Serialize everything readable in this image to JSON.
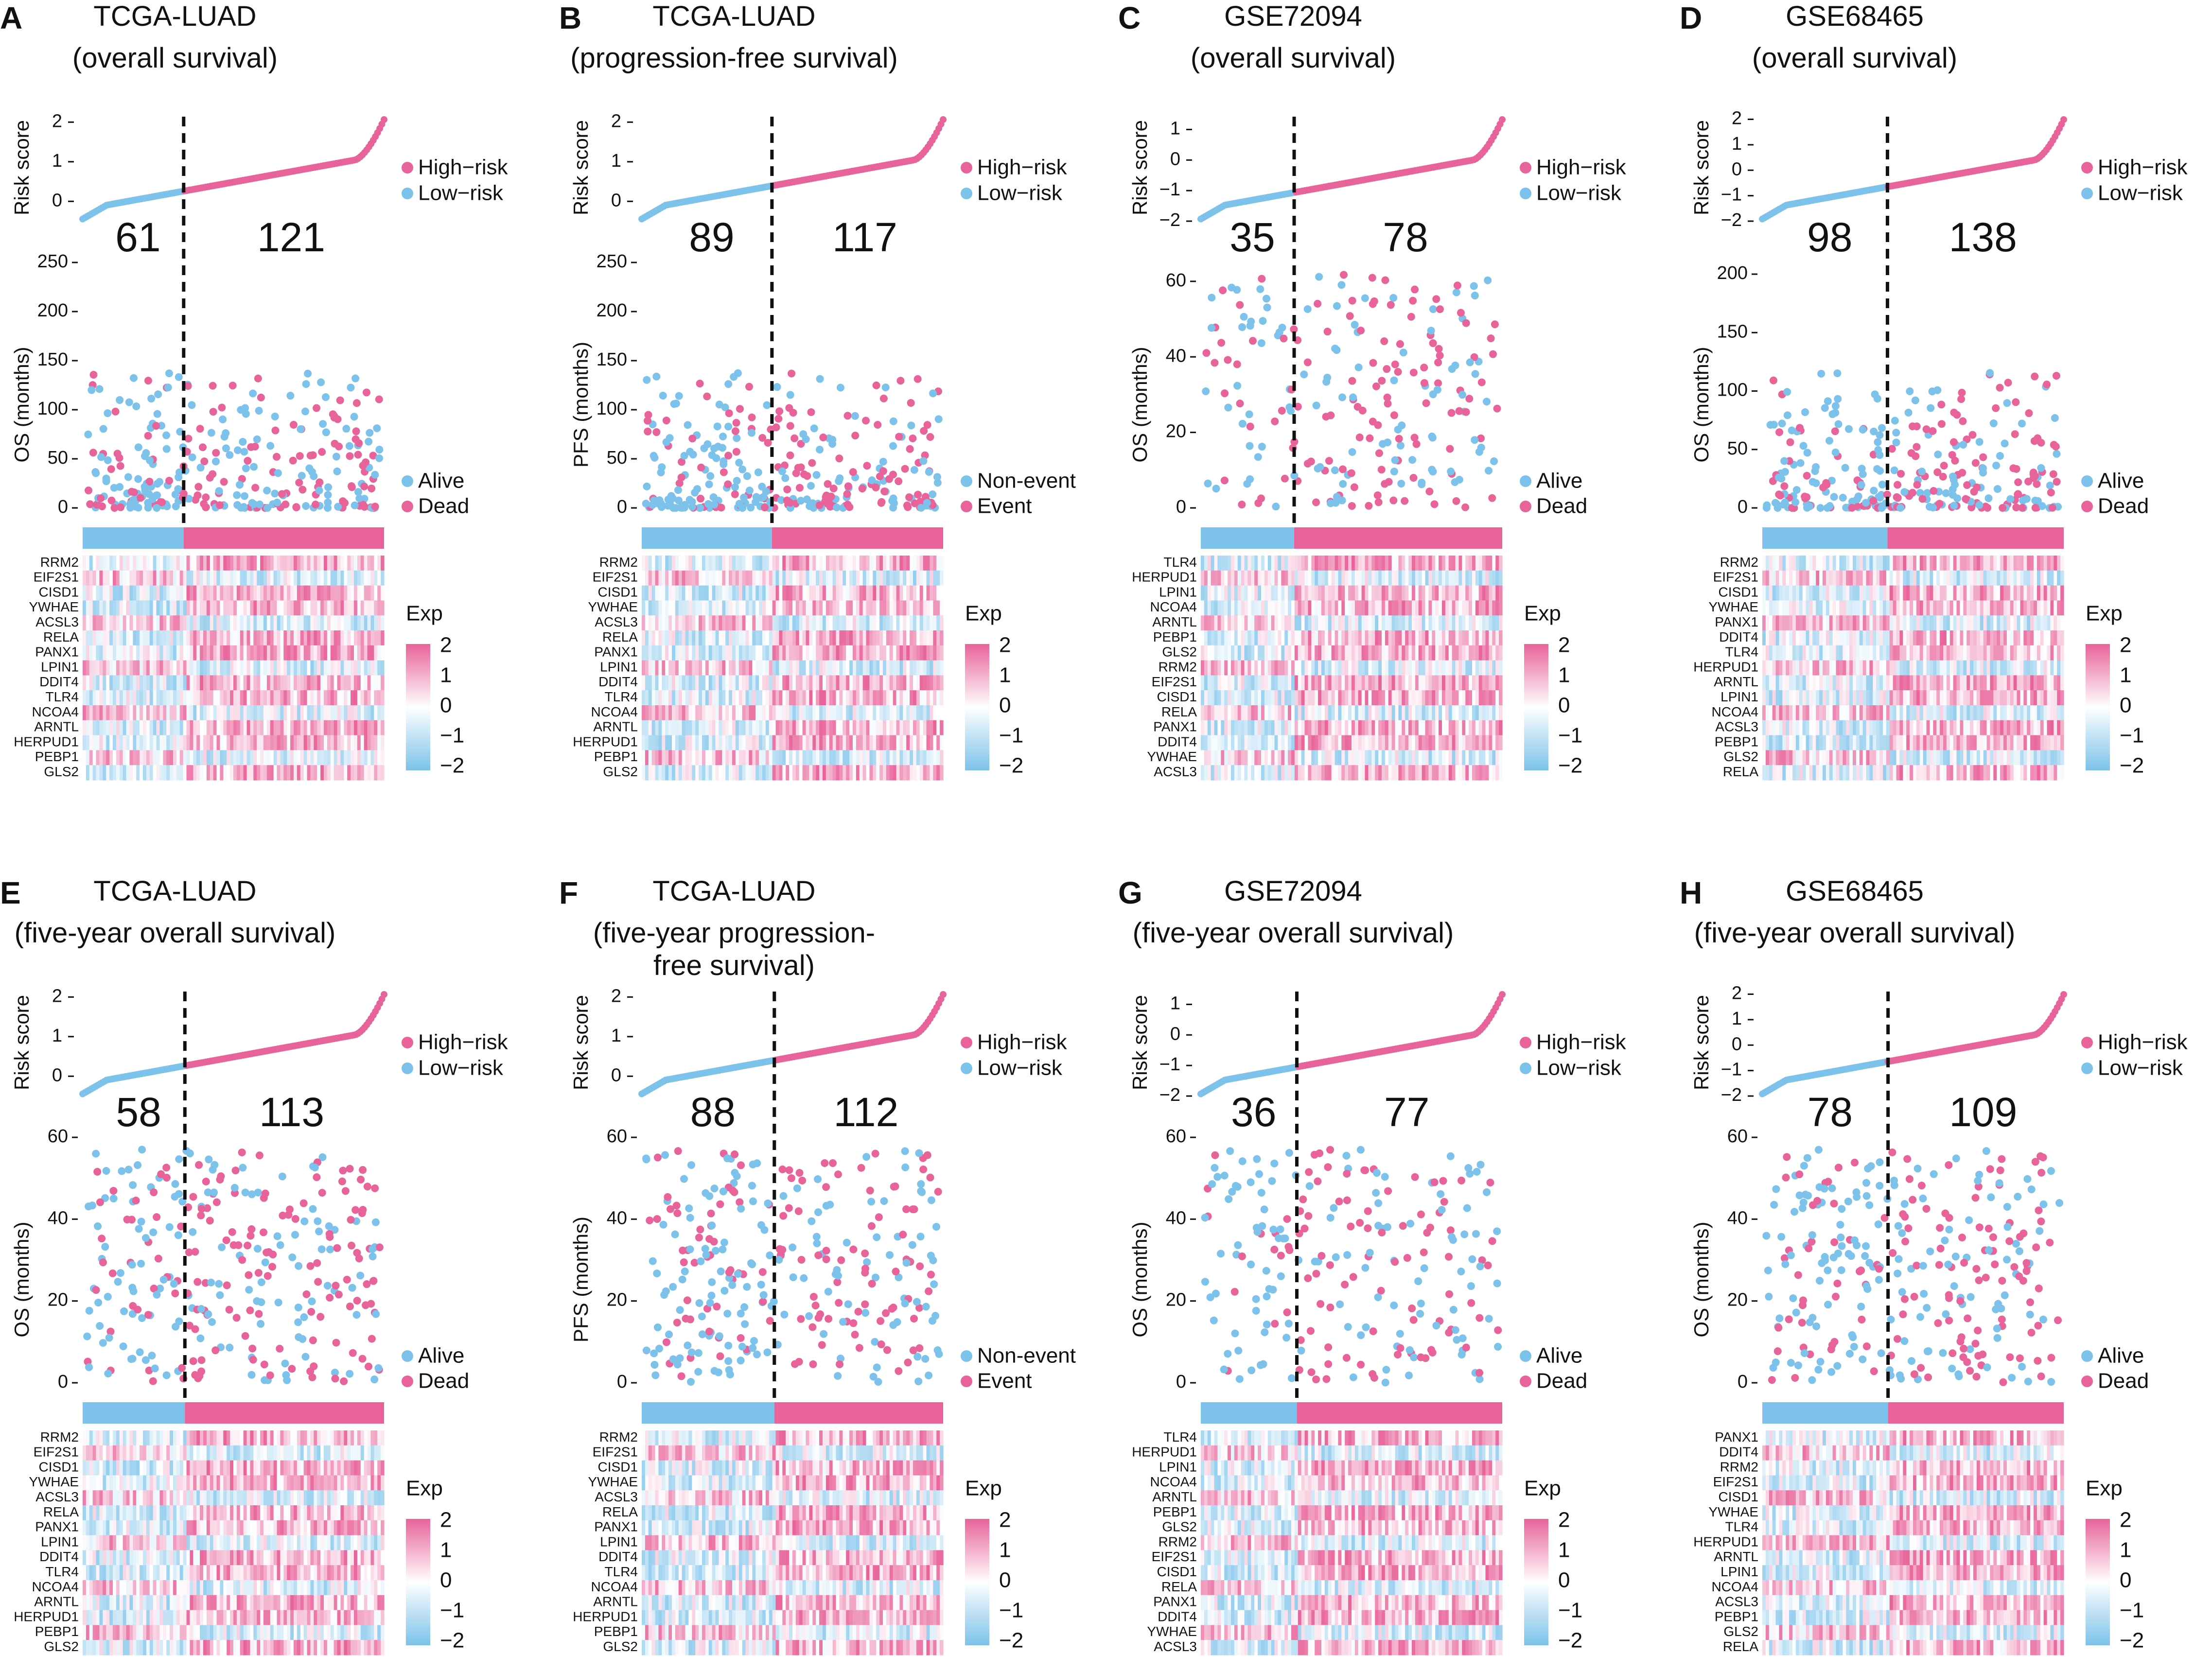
{
  "colors": {
    "high": "#e8639a",
    "low": "#7cc2ea",
    "divider": "#111111"
  },
  "panels": [
    {
      "letter": "A",
      "title1": "TCGA-LUAD",
      "title2": "(overall survival)",
      "risk_ticks": [
        "2",
        "1",
        "0"
      ],
      "n_low": "61",
      "n_high": "121",
      "surv_label": "OS (months)",
      "surv_ticks": [
        "250",
        "200",
        "150",
        "100",
        "50",
        "0"
      ],
      "status_legend": [
        "Alive",
        "Dead"
      ],
      "genes": [
        "RRM2",
        "EIF2S1",
        "CISD1",
        "YWHAE",
        "ACSL3",
        "RELA",
        "PANX1",
        "LPIN1",
        "DDIT4",
        "TLR4",
        "NCOA4",
        "ARNTL",
        "HERPUD1",
        "PEBP1",
        "GLS2"
      ]
    },
    {
      "letter": "B",
      "title1": "TCGA-LUAD",
      "title2": "(progression-free survival)",
      "risk_ticks": [
        "2",
        "1",
        "0"
      ],
      "n_low": "89",
      "n_high": "117",
      "surv_label": "PFS (months)",
      "surv_ticks": [
        "250",
        "200",
        "150",
        "100",
        "50",
        "0"
      ],
      "status_legend": [
        "Non-event",
        "Event"
      ],
      "genes": [
        "RRM2",
        "EIF2S1",
        "CISD1",
        "YWHAE",
        "ACSL3",
        "RELA",
        "PANX1",
        "LPIN1",
        "DDIT4",
        "TLR4",
        "NCOA4",
        "ARNTL",
        "HERPUD1",
        "PEBP1",
        "GLS2"
      ]
    },
    {
      "letter": "C",
      "title1": "GSE72094",
      "title2": "(overall survival)",
      "risk_ticks": [
        "1",
        "0",
        "−1",
        "−2"
      ],
      "n_low": "35",
      "n_high": "78",
      "surv_label": "OS (months)",
      "surv_ticks": [
        "60",
        "40",
        "20",
        "0"
      ],
      "status_legend": [
        "Alive",
        "Dead"
      ],
      "genes": [
        "TLR4",
        "HERPUD1",
        "LPIN1",
        "NCOA4",
        "ARNTL",
        "PEBP1",
        "GLS2",
        "RRM2",
        "EIF2S1",
        "CISD1",
        "RELA",
        "PANX1",
        "DDIT4",
        "YWHAE",
        "ACSL3"
      ]
    },
    {
      "letter": "D",
      "title1": "GSE68465",
      "title2": "(overall survival)",
      "risk_ticks": [
        "2",
        "1",
        "0",
        "−1",
        "−2"
      ],
      "n_low": "98",
      "n_high": "138",
      "surv_label": "OS (months)",
      "surv_ticks": [
        "200",
        "150",
        "100",
        "50",
        "0"
      ],
      "status_legend": [
        "Alive",
        "Dead"
      ],
      "genes": [
        "RRM2",
        "EIF2S1",
        "CISD1",
        "YWHAE",
        "PANX1",
        "DDIT4",
        "TLR4",
        "HERPUD1",
        "ARNTL",
        "LPIN1",
        "NCOA4",
        "ACSL3",
        "PEBP1",
        "GLS2",
        "RELA"
      ]
    },
    {
      "letter": "E",
      "title1": "TCGA-LUAD",
      "title2": "(five-year overall survival)",
      "risk_ticks": [
        "2",
        "1",
        "0"
      ],
      "n_low": "58",
      "n_high": "113",
      "surv_label": "OS (months)",
      "surv_ticks": [
        "60",
        "40",
        "20",
        "0"
      ],
      "status_legend": [
        "Alive",
        "Dead"
      ],
      "genes": [
        "RRM2",
        "EIF2S1",
        "CISD1",
        "YWHAE",
        "ACSL3",
        "RELA",
        "PANX1",
        "LPIN1",
        "DDIT4",
        "TLR4",
        "NCOA4",
        "ARNTL",
        "HERPUD1",
        "PEBP1",
        "GLS2"
      ]
    },
    {
      "letter": "F",
      "title1": "TCGA-LUAD",
      "title2": "(five-year progression-free survival)",
      "risk_ticks": [
        "2",
        "1",
        "0"
      ],
      "n_low": "88",
      "n_high": "112",
      "surv_label": "PFS (months)",
      "surv_ticks": [
        "60",
        "40",
        "20",
        "0"
      ],
      "status_legend": [
        "Non-event",
        "Event"
      ],
      "genes": [
        "RRM2",
        "EIF2S1",
        "CISD1",
        "YWHAE",
        "ACSL3",
        "RELA",
        "PANX1",
        "LPIN1",
        "DDIT4",
        "TLR4",
        "NCOA4",
        "ARNTL",
        "HERPUD1",
        "PEBP1",
        "GLS2"
      ]
    },
    {
      "letter": "G",
      "title1": "GSE72094",
      "title2": "(five-year overall survival)",
      "risk_ticks": [
        "1",
        "0",
        "−1",
        "−2"
      ],
      "n_low": "36",
      "n_high": "77",
      "surv_label": "OS (months)",
      "surv_ticks": [
        "60",
        "40",
        "20",
        "0"
      ],
      "status_legend": [
        "Alive",
        "Dead"
      ],
      "genes": [
        "TLR4",
        "HERPUD1",
        "LPIN1",
        "NCOA4",
        "ARNTL",
        "PEBP1",
        "GLS2",
        "RRM2",
        "EIF2S1",
        "CISD1",
        "RELA",
        "PANX1",
        "DDIT4",
        "YWHAE",
        "ACSL3"
      ]
    },
    {
      "letter": "H",
      "title1": "GSE68465",
      "title2": "(five-year overall survival)",
      "risk_ticks": [
        "2",
        "1",
        "0",
        "−1",
        "−2"
      ],
      "n_low": "78",
      "n_high": "109",
      "surv_label": "OS (months)",
      "surv_ticks": [
        "60",
        "40",
        "20",
        "0"
      ],
      "status_legend": [
        "Alive",
        "Dead"
      ],
      "genes": [
        "PANX1",
        "DDIT4",
        "RRM2",
        "EIF2S1",
        "CISD1",
        "YWHAE",
        "TLR4",
        "HERPUD1",
        "ARNTL",
        "LPIN1",
        "NCOA4",
        "ACSL3",
        "PEBP1",
        "GLS2",
        "RELA"
      ]
    }
  ],
  "common": {
    "risk_label": "Risk score",
    "risk_legend": [
      "High−risk",
      "Low−risk"
    ],
    "exp_label": "Exp",
    "exp_ticks": [
      "2",
      "1",
      "0",
      "−1",
      "−2"
    ]
  },
  "chart_data": {
    "type": "scatter",
    "description_type": "risk score curve, survival scatter and expression heatmap per cohort",
    "panels": [
      {
        "panel": "A",
        "n_low": 61,
        "n_high": 121,
        "risk_ylim": [
          -0.5,
          2.2
        ],
        "surv_ylim": [
          0,
          250
        ]
      },
      {
        "panel": "B",
        "n_low": 89,
        "n_high": 117,
        "risk_ylim": [
          -0.5,
          2.2
        ],
        "surv_ylim": [
          0,
          250
        ]
      },
      {
        "panel": "C",
        "n_low": 35,
        "n_high": 78,
        "risk_ylim": [
          -2,
          1.5
        ],
        "surv_ylim": [
          0,
          65
        ]
      },
      {
        "panel": "D",
        "n_low": 98,
        "n_high": 138,
        "risk_ylim": [
          -2,
          2.2
        ],
        "surv_ylim": [
          0,
          210
        ]
      },
      {
        "panel": "E",
        "n_low": 58,
        "n_high": 113,
        "risk_ylim": [
          -0.5,
          2.2
        ],
        "surv_ylim": [
          0,
          60
        ]
      },
      {
        "panel": "F",
        "n_low": 88,
        "n_high": 112,
        "risk_ylim": [
          -0.5,
          2.2
        ],
        "surv_ylim": [
          0,
          60
        ]
      },
      {
        "panel": "G",
        "n_low": 36,
        "n_high": 77,
        "risk_ylim": [
          -2,
          1.5
        ],
        "surv_ylim": [
          0,
          60
        ]
      },
      {
        "panel": "H",
        "n_low": 78,
        "n_high": 109,
        "risk_ylim": [
          -2,
          2.2
        ],
        "surv_ylim": [
          0,
          60
        ]
      }
    ],
    "exp_range": [
      -2,
      2
    ]
  }
}
